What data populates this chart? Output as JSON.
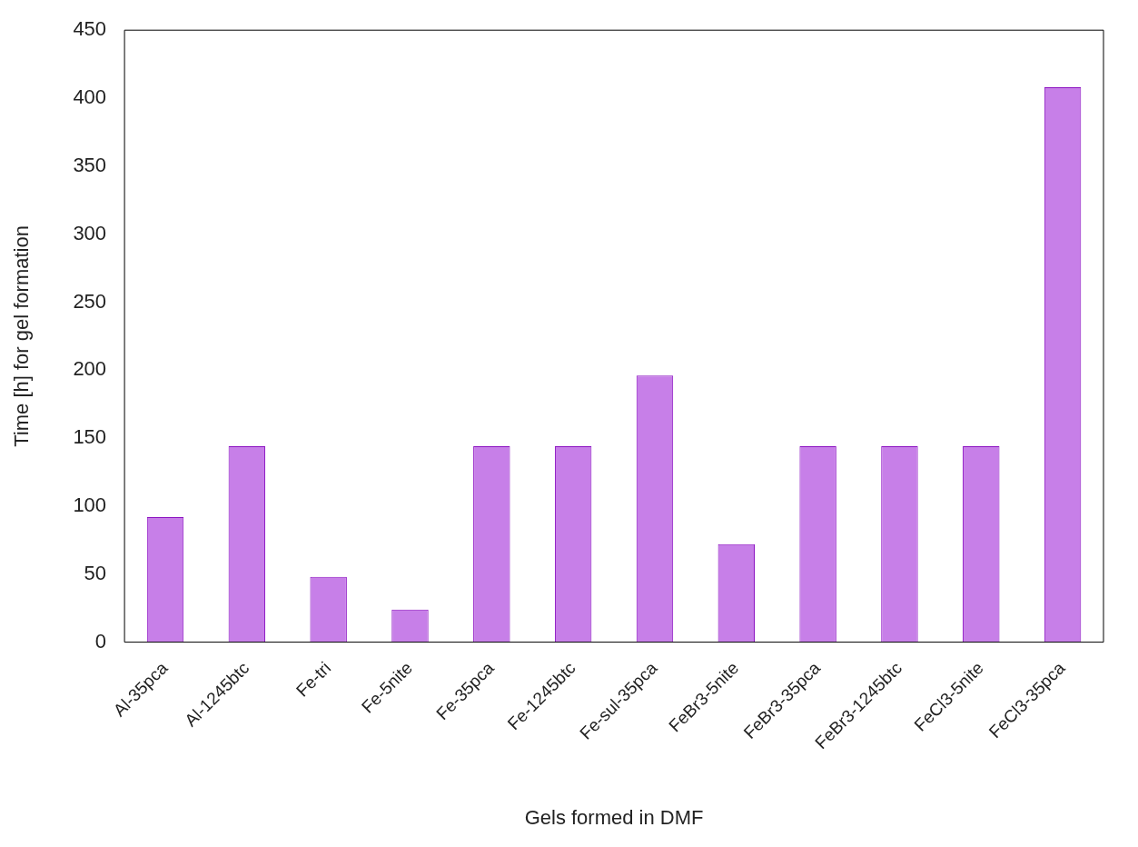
{
  "chart_data": {
    "type": "bar",
    "xlabel": "Gels formed in DMF",
    "ylabel": "Time [h] for gel formation",
    "categories": [
      "Al-35pca",
      "Al-1245btc",
      "Fe-tri",
      "Fe-5nite",
      "Fe-35pca",
      "Fe-1245btc",
      "Fe-sul-35pca",
      "FeBr3-5nite",
      "FeBr3-35pca",
      "FeBr3-1245btc",
      "FeCl3-5nite",
      "FeCl3-35pca"
    ],
    "values": [
      92,
      144,
      48,
      24,
      144,
      144,
      196,
      72,
      144,
      144,
      144,
      408
    ],
    "color": "#c77fe8",
    "ylim": [
      0,
      450
    ],
    "yticks": [
      0,
      50,
      100,
      150,
      200,
      250,
      300,
      350,
      400,
      450
    ],
    "grid": false,
    "legend": false
  }
}
